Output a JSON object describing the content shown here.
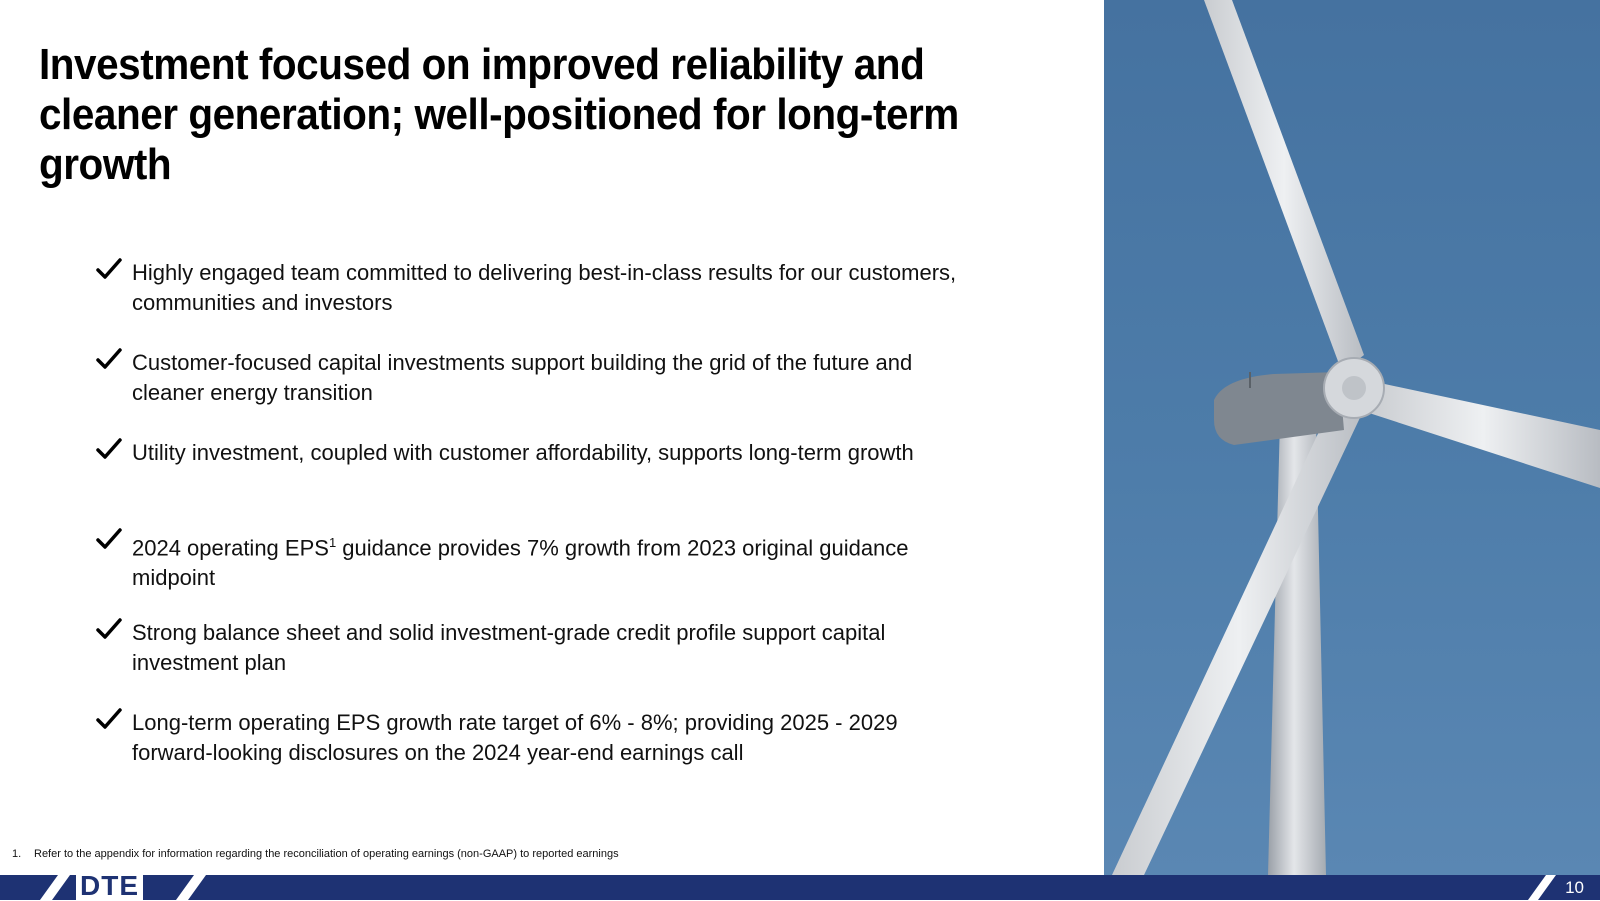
{
  "title": "Investment focused on improved reliability and cleaner generation; well-positioned for long-term growth",
  "bullets": [
    {
      "text": "Highly engaged team committed to delivering best-in-class results for our customers, communities and investors"
    },
    {
      "text": "Customer-focused capital investments support building the grid of the future and cleaner energy transition"
    },
    {
      "text": "Utility investment, coupled with customer affordability, supports long-term growth"
    },
    {
      "pre": "2024 operating EPS",
      "sup": "1",
      "post": " guidance provides 7% growth from 2023 original guidance midpoint"
    },
    {
      "text": "Strong balance sheet and solid investment-grade credit profile support capital investment plan"
    },
    {
      "text": "Long-term operating EPS growth rate target of 6% - 8%; providing 2025 - 2029 forward-looking disclosures on the 2024 year-end earnings call"
    }
  ],
  "footnote": {
    "number": "1.",
    "text": "Refer to the appendix for information regarding the reconciliation of operating earnings (non-GAAP) to reported earnings"
  },
  "footer": {
    "logo_text": "DTE",
    "page_number": "10"
  },
  "colors": {
    "brand_navy": "#1e3273",
    "sky_blue": "#4d7ca9"
  },
  "icons": {
    "bullet": "checkmark-icon",
    "photo": "wind-turbine-photo"
  }
}
